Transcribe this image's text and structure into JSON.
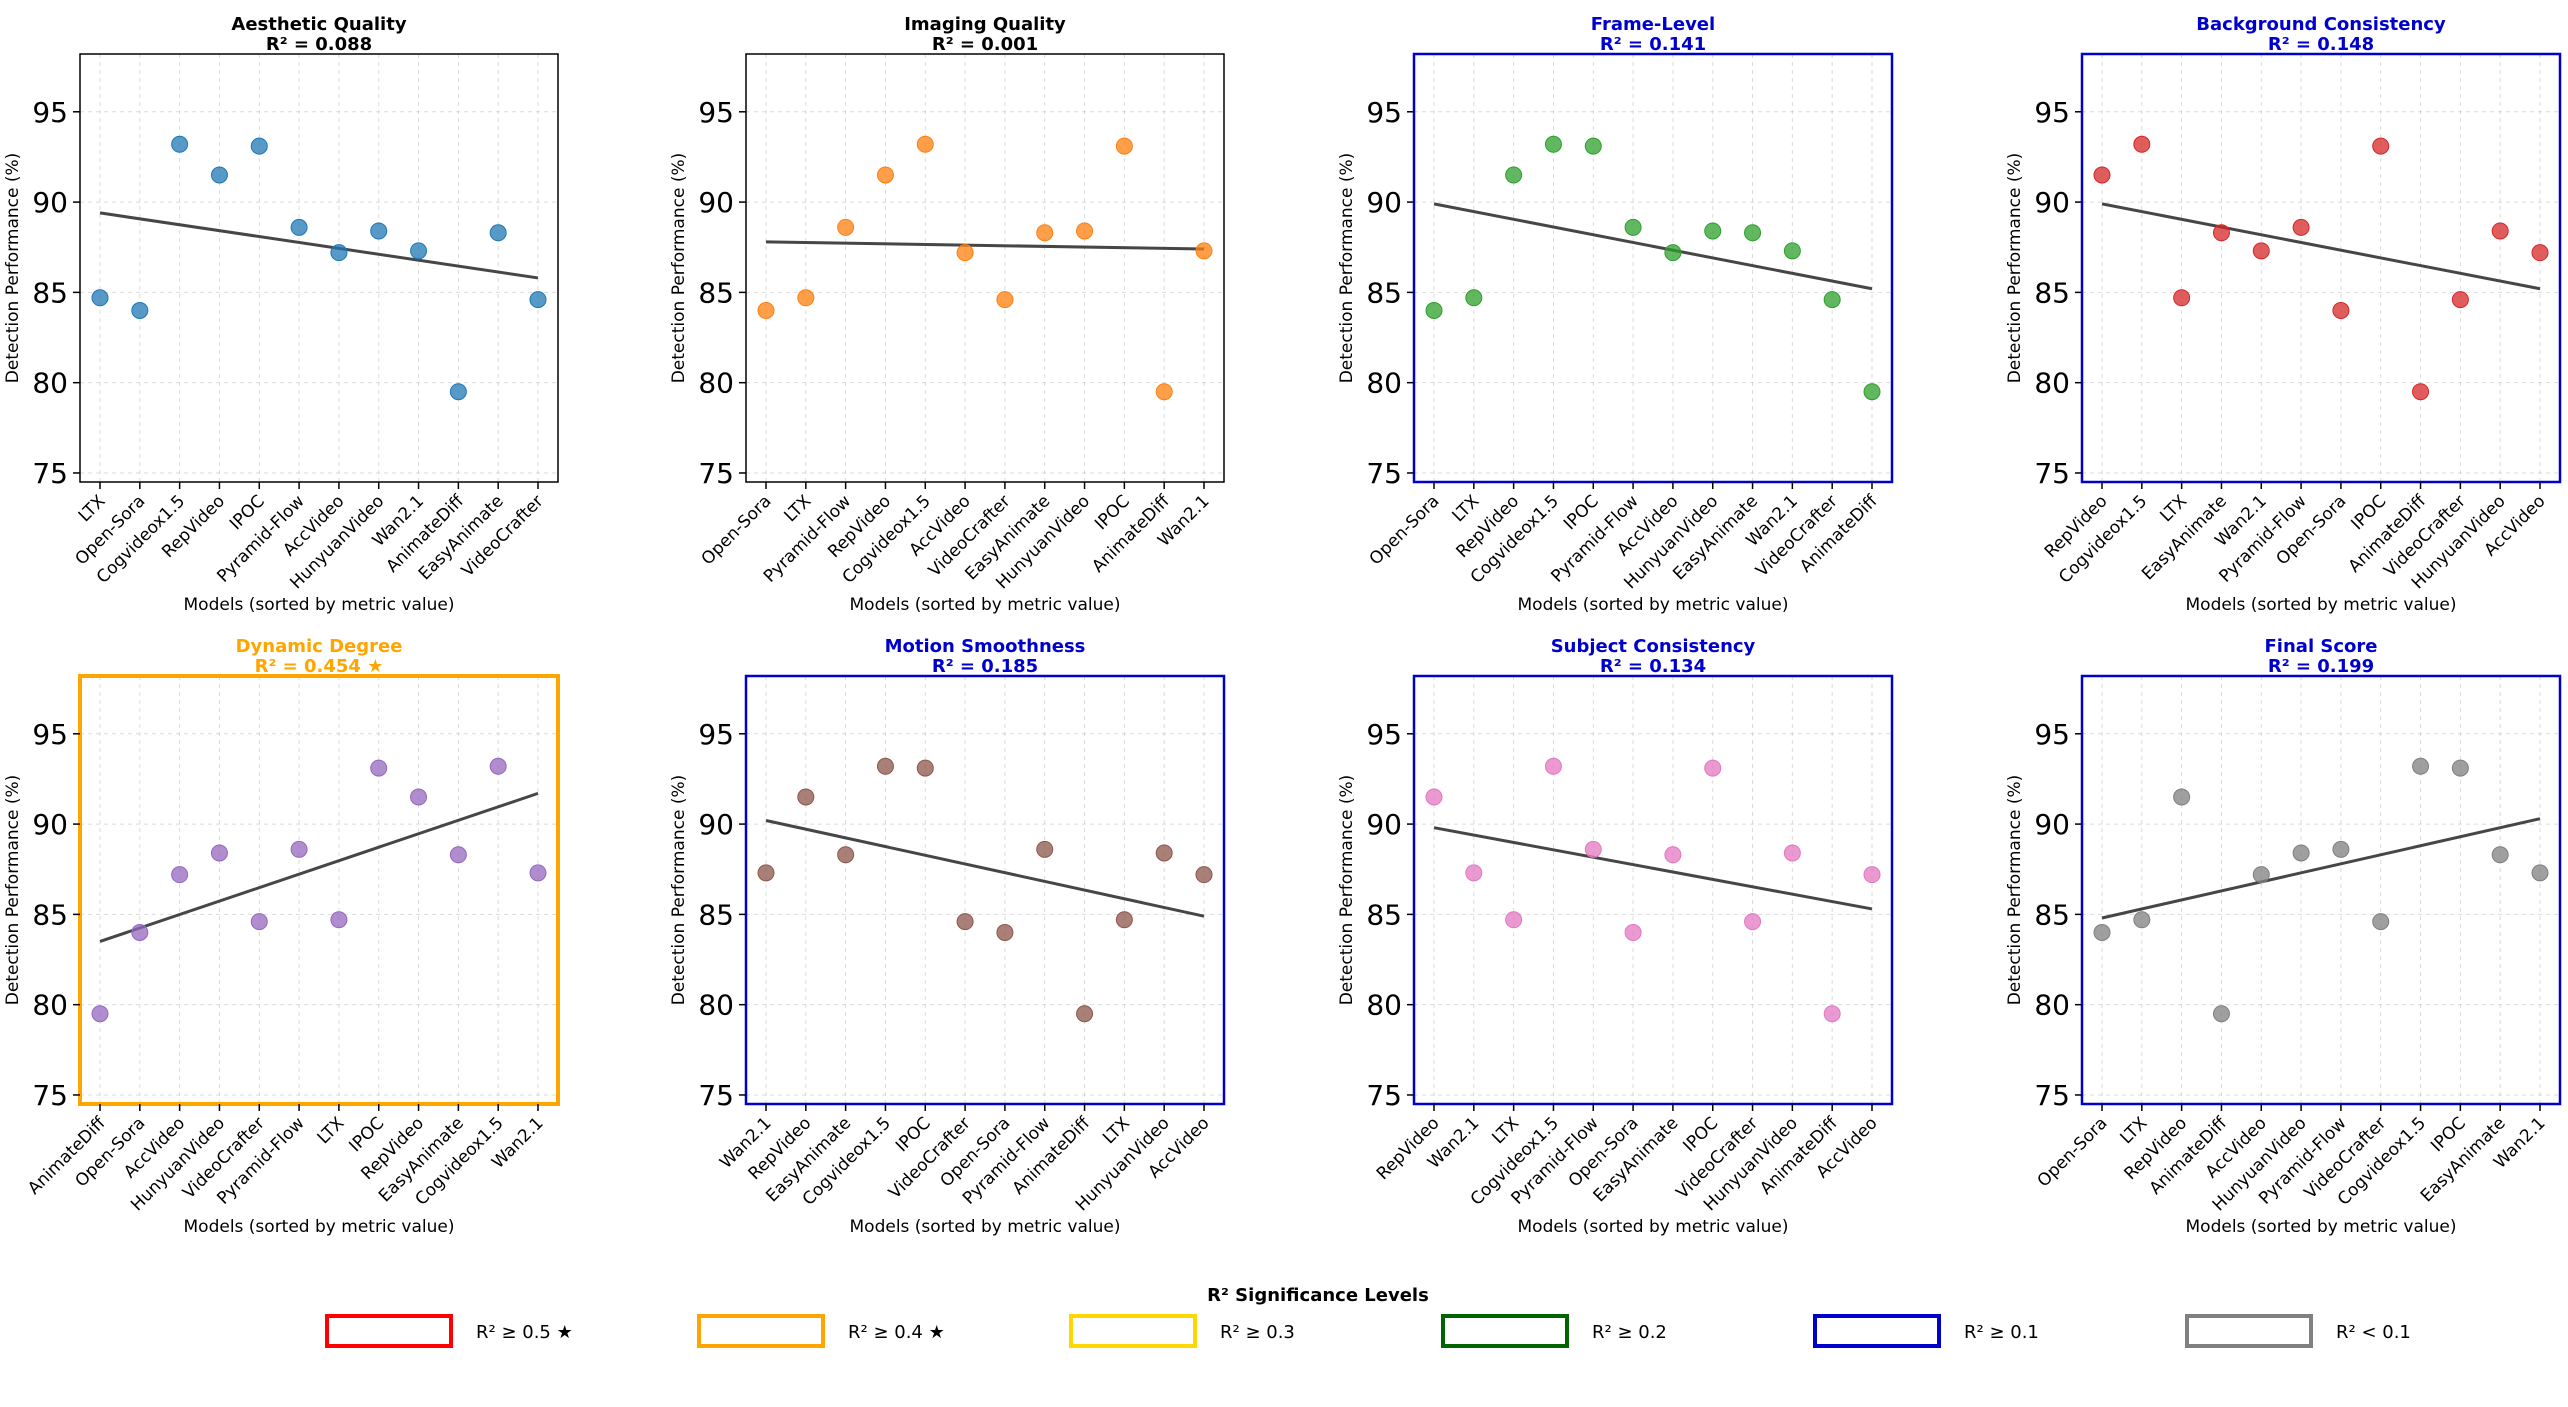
{
  "figure": {
    "ylabel": "Detection Performance (%)",
    "xlabel": "Models (sorted by metric value)"
  },
  "legend": {
    "title": "R² Significance Levels",
    "items": [
      {
        "label": "R² ≥ 0.5 ★",
        "color": "#ff0000"
      },
      {
        "label": "R² ≥ 0.4 ★",
        "color": "#ffa500"
      },
      {
        "label": "R² ≥ 0.3",
        "color": "#ffd700"
      },
      {
        "label": "R² ≥ 0.2",
        "color": "#006400"
      },
      {
        "label": "R² ≥ 0.1",
        "color": "#0000cd"
      },
      {
        "label": "R² < 0.1",
        "color": "#808080"
      }
    ]
  },
  "chart_data": [
    {
      "type": "scatter",
      "title": "Aesthetic Quality",
      "subtitle": "R² = 0.088",
      "title_color": "#000000",
      "frame_color": "#000000",
      "point_color": "#1f77b4",
      "categories": [
        "LTX",
        "Open-Sora",
        "Cogvideox1.5",
        "RepVideo",
        "IPOC",
        "Pyramid-Flow",
        "AccVideo",
        "HunyuanVideo",
        "Wan2.1",
        "AnimateDiff",
        "EasyAnimate",
        "VideoCrafter"
      ],
      "values": [
        84.7,
        84.0,
        93.2,
        91.5,
        93.1,
        88.6,
        87.2,
        88.4,
        87.3,
        79.5,
        88.3,
        84.6
      ],
      "trend": [
        89.4,
        85.8
      ],
      "ylim": [
        74.5,
        98.2
      ],
      "yticks": [
        75,
        80,
        85,
        90,
        95
      ],
      "grid": true
    },
    {
      "type": "scatter",
      "title": "Imaging Quality",
      "subtitle": "R² = 0.001",
      "title_color": "#000000",
      "frame_color": "#000000",
      "point_color": "#ff7f0e",
      "categories": [
        "Open-Sora",
        "LTX",
        "Pyramid-Flow",
        "RepVideo",
        "Cogvideox1.5",
        "AccVideo",
        "VideoCrafter",
        "EasyAnimate",
        "HunyuanVideo",
        "IPOC",
        "AnimateDiff",
        "Wan2.1"
      ],
      "values": [
        84.0,
        84.7,
        88.6,
        91.5,
        93.2,
        87.2,
        84.6,
        88.3,
        88.4,
        93.1,
        79.5,
        87.3
      ],
      "trend": [
        87.8,
        87.4
      ],
      "ylim": [
        74.5,
        98.2
      ],
      "yticks": [
        75,
        80,
        85,
        90,
        95
      ],
      "grid": true
    },
    {
      "type": "scatter",
      "title": "Frame-Level",
      "subtitle": "R² = 0.141",
      "title_color": "#0000cd",
      "frame_color": "#0000cd",
      "point_color": "#2ca02c",
      "categories": [
        "Open-Sora",
        "LTX",
        "RepVideo",
        "Cogvideox1.5",
        "IPOC",
        "Pyramid-Flow",
        "AccVideo",
        "HunyuanVideo",
        "EasyAnimate",
        "Wan2.1",
        "VideoCrafter",
        "AnimateDiff"
      ],
      "values": [
        84.0,
        84.7,
        91.5,
        93.2,
        93.1,
        88.6,
        87.2,
        88.4,
        88.3,
        87.3,
        84.6,
        79.5
      ],
      "trend": [
        89.9,
        85.2
      ],
      "ylim": [
        74.5,
        98.2
      ],
      "yticks": [
        75,
        80,
        85,
        90,
        95
      ],
      "grid": true
    },
    {
      "type": "scatter",
      "title": "Background Consistency",
      "subtitle": "R² = 0.148",
      "title_color": "#0000cd",
      "frame_color": "#0000cd",
      "point_color": "#d62728",
      "categories": [
        "RepVideo",
        "Cogvideox1.5",
        "LTX",
        "EasyAnimate",
        "Wan2.1",
        "Pyramid-Flow",
        "Open-Sora",
        "IPOC",
        "AnimateDiff",
        "VideoCrafter",
        "HunyuanVideo",
        "AccVideo"
      ],
      "values": [
        91.5,
        93.2,
        84.7,
        88.3,
        87.3,
        88.6,
        84.0,
        93.1,
        79.5,
        84.6,
        88.4,
        87.2
      ],
      "trend": [
        89.9,
        85.2
      ],
      "ylim": [
        74.5,
        98.2
      ],
      "yticks": [
        75,
        80,
        85,
        90,
        95
      ],
      "grid": true
    },
    {
      "type": "scatter",
      "title": "Dynamic Degree",
      "subtitle": "R² = 0.454 ★",
      "title_color": "#ffa500",
      "frame_color": "#ffa500",
      "point_color": "#9467bd",
      "categories": [
        "AnimateDiff",
        "Open-Sora",
        "AccVideo",
        "HunyuanVideo",
        "VideoCrafter",
        "Pyramid-Flow",
        "LTX",
        "IPOC",
        "RepVideo",
        "EasyAnimate",
        "Cogvideox1.5",
        "Wan2.1"
      ],
      "values": [
        79.5,
        84.0,
        87.2,
        88.4,
        84.6,
        88.6,
        84.7,
        93.1,
        91.5,
        88.3,
        93.2,
        87.3
      ],
      "trend": [
        83.5,
        91.7
      ],
      "ylim": [
        74.5,
        98.2
      ],
      "yticks": [
        75,
        80,
        85,
        90,
        95
      ],
      "grid": true
    },
    {
      "type": "scatter",
      "title": "Motion Smoothness",
      "subtitle": "R² = 0.185",
      "title_color": "#0000cd",
      "frame_color": "#0000cd",
      "point_color": "#8c564b",
      "categories": [
        "Wan2.1",
        "RepVideo",
        "EasyAnimate",
        "Cogvideox1.5",
        "IPOC",
        "VideoCrafter",
        "Open-Sora",
        "Pyramid-Flow",
        "AnimateDiff",
        "LTX",
        "HunyuanVideo",
        "AccVideo"
      ],
      "values": [
        87.3,
        91.5,
        88.3,
        93.2,
        93.1,
        84.6,
        84.0,
        88.6,
        79.5,
        84.7,
        88.4,
        87.2
      ],
      "trend": [
        90.2,
        84.9
      ],
      "ylim": [
        74.5,
        98.2
      ],
      "yticks": [
        75,
        80,
        85,
        90,
        95
      ],
      "grid": true
    },
    {
      "type": "scatter",
      "title": "Subject Consistency",
      "subtitle": "R² = 0.134",
      "title_color": "#0000cd",
      "frame_color": "#0000cd",
      "point_color": "#e377c2",
      "categories": [
        "RepVideo",
        "Wan2.1",
        "LTX",
        "Cogvideox1.5",
        "Pyramid-Flow",
        "Open-Sora",
        "EasyAnimate",
        "IPOC",
        "VideoCrafter",
        "HunyuanVideo",
        "AnimateDiff",
        "AccVideo"
      ],
      "values": [
        91.5,
        87.3,
        84.7,
        93.2,
        88.6,
        84.0,
        88.3,
        93.1,
        84.6,
        88.4,
        79.5,
        87.2
      ],
      "trend": [
        89.8,
        85.3
      ],
      "ylim": [
        74.5,
        98.2
      ],
      "yticks": [
        75,
        80,
        85,
        90,
        95
      ],
      "grid": true
    },
    {
      "type": "scatter",
      "title": "Final Score",
      "subtitle": "R² = 0.199",
      "title_color": "#0000cd",
      "frame_color": "#0000cd",
      "point_color": "#7f7f7f",
      "categories": [
        "Open-Sora",
        "LTX",
        "RepVideo",
        "AnimateDiff",
        "AccVideo",
        "HunyuanVideo",
        "Pyramid-Flow",
        "VideoCrafter",
        "Cogvideox1.5",
        "IPOC",
        "EasyAnimate",
        "Wan2.1"
      ],
      "values": [
        84.0,
        84.7,
        91.5,
        79.5,
        87.2,
        88.4,
        88.6,
        84.6,
        93.2,
        93.1,
        88.3,
        87.3
      ],
      "trend": [
        84.8,
        90.3
      ],
      "ylim": [
        74.5,
        98.2
      ],
      "yticks": [
        75,
        80,
        85,
        90,
        95
      ],
      "grid": true
    }
  ]
}
